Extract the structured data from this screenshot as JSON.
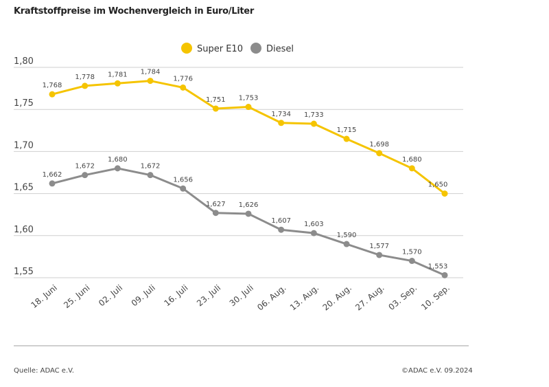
{
  "chart_data": {
    "type": "line",
    "title": "Kraftstoffpreise im Wochenvergleich in Euro/Liter",
    "categories": [
      "18. Juni",
      "25. Juni",
      "02. Juli",
      "09. Juli",
      "16. Juli",
      "23. Juli",
      "30. Juli",
      "06. Aug.",
      "13. Aug.",
      "20. Aug.",
      "27. Aug.",
      "03. Sep.",
      "10. Sep."
    ],
    "series": [
      {
        "name": "Super E10",
        "color": "#f5c400",
        "values": [
          1.768,
          1.778,
          1.781,
          1.784,
          1.776,
          1.751,
          1.753,
          1.734,
          1.733,
          1.715,
          1.698,
          1.68,
          1.65
        ],
        "labels": [
          "1,768",
          "1,778",
          "1,781",
          "1,784",
          "1,776",
          "1,751",
          "1,753",
          "1,734",
          "1,733",
          "1,715",
          "1,698",
          "1,680",
          "1,650"
        ]
      },
      {
        "name": "Diesel",
        "color": "#8c8c8c",
        "values": [
          1.662,
          1.672,
          1.68,
          1.672,
          1.656,
          1.627,
          1.626,
          1.607,
          1.603,
          1.59,
          1.577,
          1.57,
          1.553
        ],
        "labels": [
          "1,662",
          "1,672",
          "1,680",
          "1,672",
          "1,656",
          "1,627",
          "1,626",
          "1,607",
          "1,603",
          "1,590",
          "1,577",
          "1,570",
          "1,553"
        ]
      }
    ],
    "yticks": [
      1.8,
      1.75,
      1.7,
      1.65,
      1.6,
      1.55
    ],
    "ytick_labels": [
      "1,80",
      "1,75",
      "1,70",
      "1,65",
      "1,60",
      "1,55"
    ],
    "ylim": [
      1.55,
      1.8
    ],
    "grid": true,
    "legend": "top-center"
  },
  "footer": {
    "source": "Quelle: ADAC e.V.",
    "copyright": "©ADAC e.V. 09.2024"
  }
}
